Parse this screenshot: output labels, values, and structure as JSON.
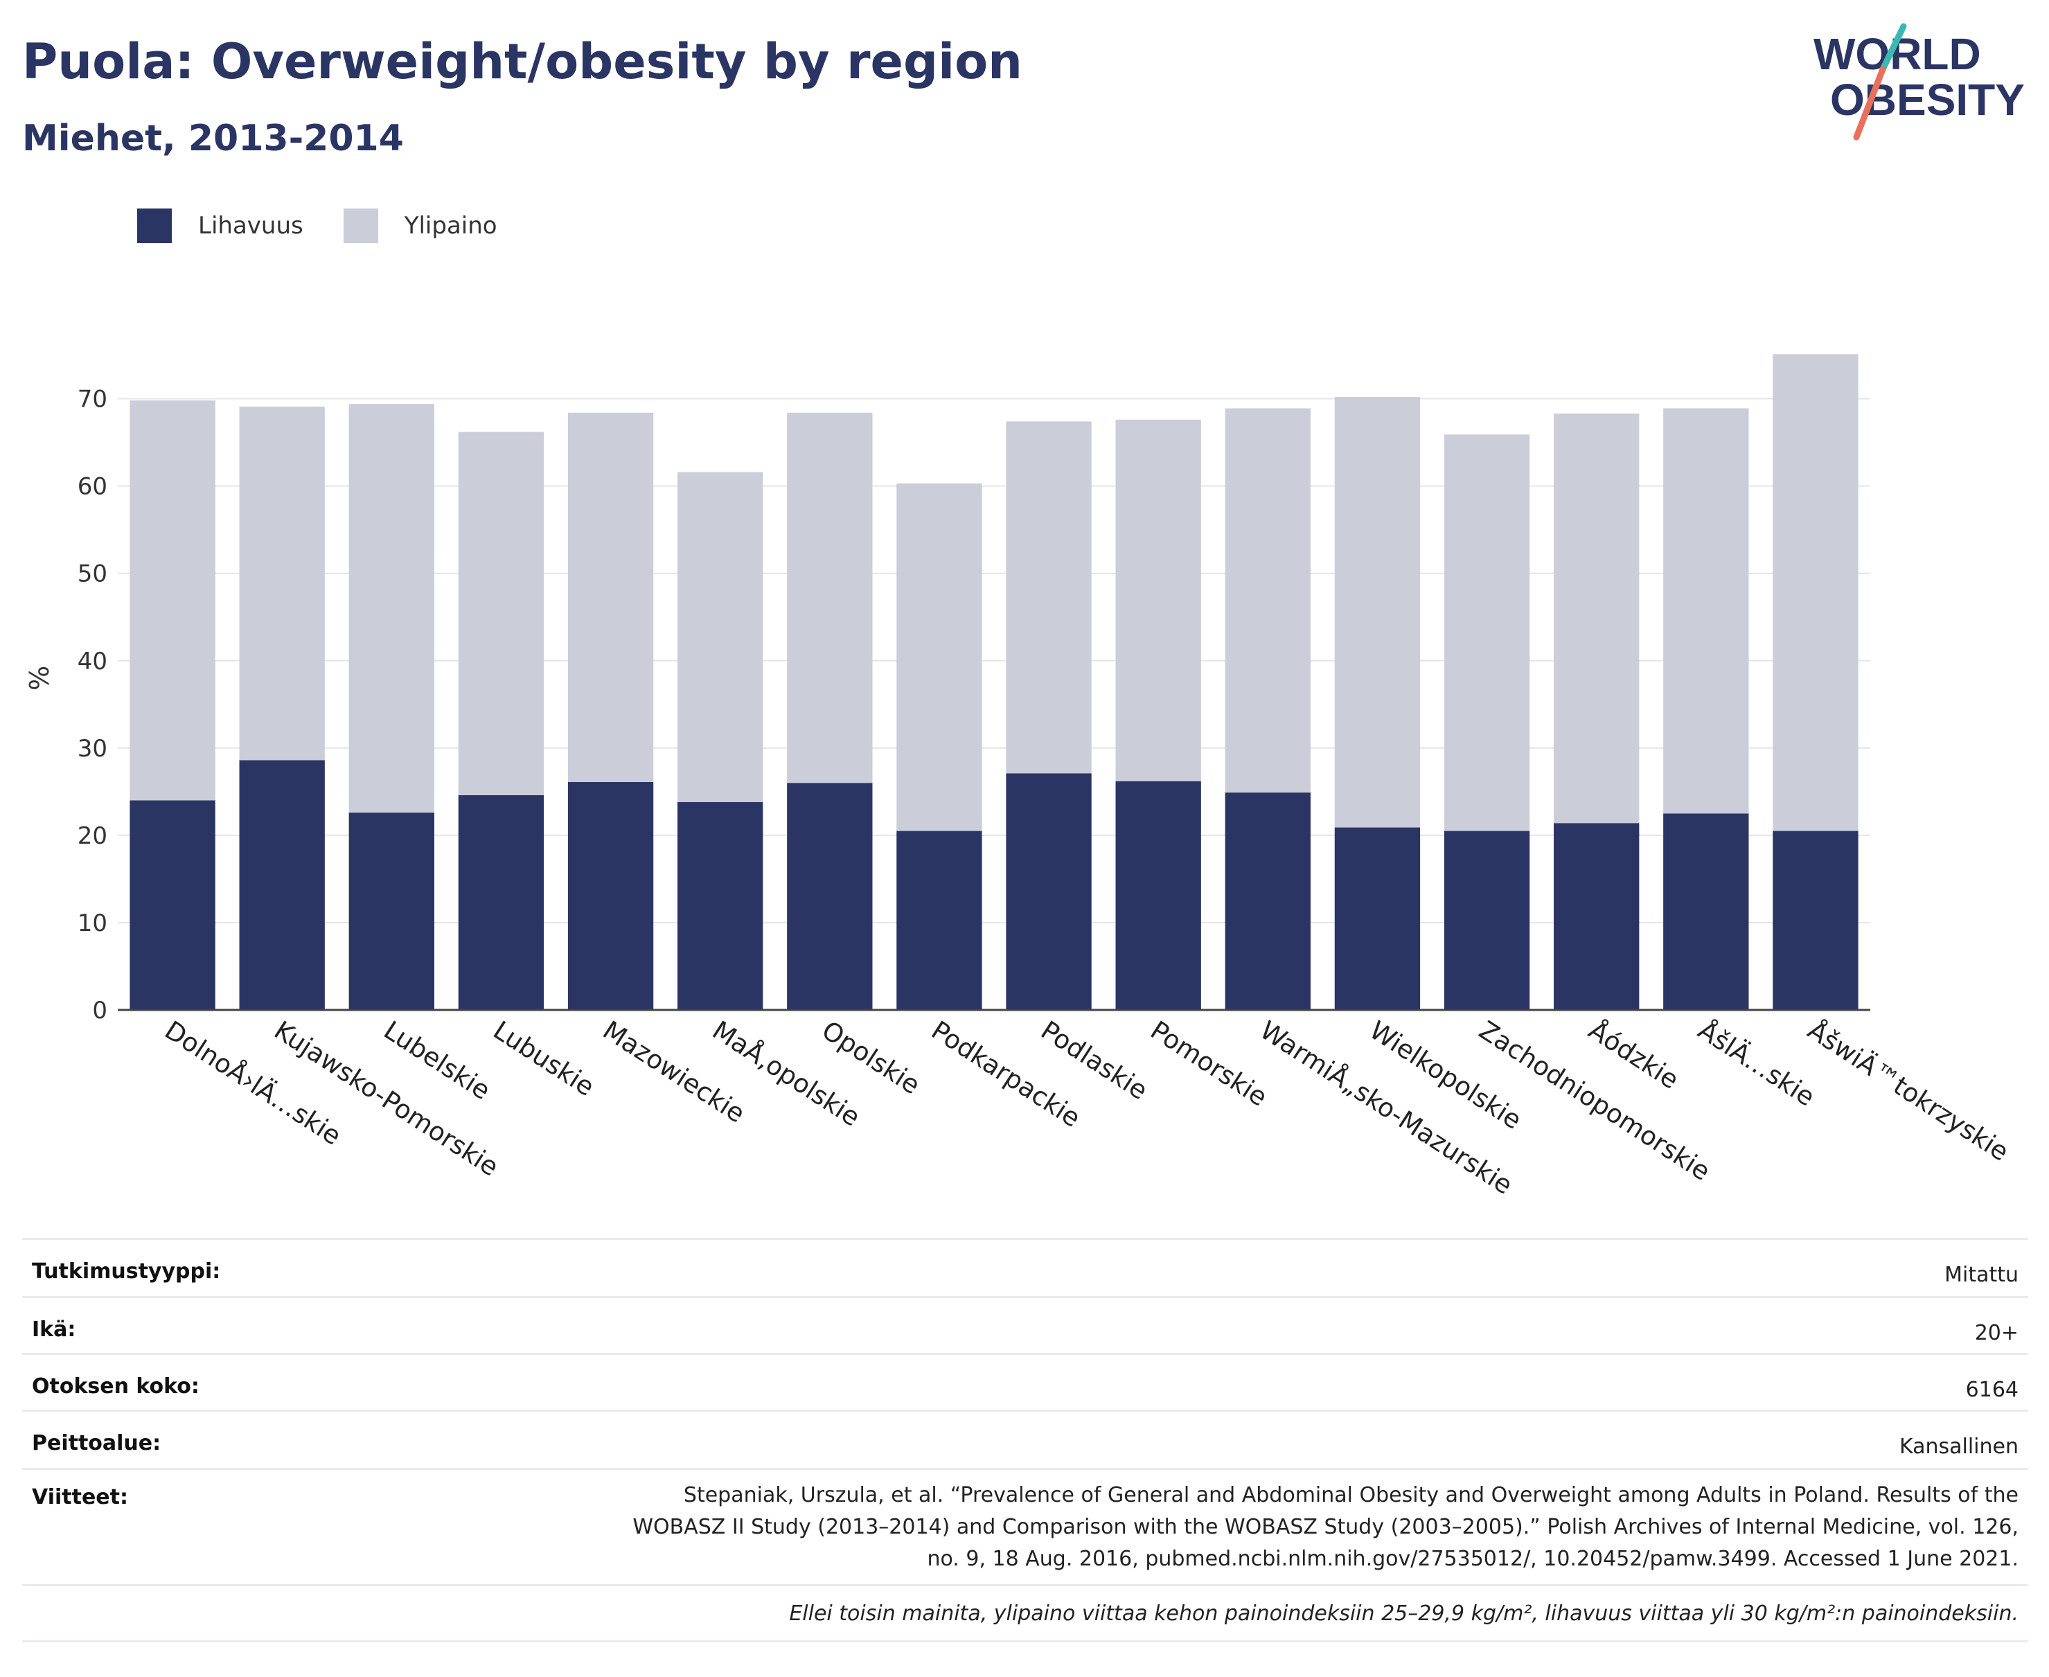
{
  "header": {
    "title": "Puola: Overweight/obesity by region",
    "subtitle": "Miehet, 2013-2014"
  },
  "logo": {
    "line1": "WORLD",
    "line2": "OBESITY"
  },
  "colors": {
    "obesity": "#2a3563",
    "overweight": "#cbcdd9",
    "title": "#2a3563",
    "grid": "#e6e6ea",
    "logo_teal": "#3bb8b4",
    "logo_coral": "#e8705c"
  },
  "chart_data": {
    "type": "bar",
    "stacked": true,
    "categories": [
      "DolnoÅ›lÄ…skie",
      "Kujawsko-Pomorskie",
      "Lubelskie",
      "Lubuskie",
      "Mazowieckie",
      "MaÅ‚opolskie",
      "Opolskie",
      "Podkarpackie",
      "Podlaskie",
      "Pomorskie",
      "WarmiÅ„sko-Mazurskie",
      "Wielkopolskie",
      "Zachodniopomorskie",
      "Å\u001aódzkie",
      "ÅšlÄ…skie",
      "ÅšwiÄ™tokrzyskie"
    ],
    "series": [
      {
        "name": "Lihavuus",
        "values": [
          24.0,
          28.6,
          22.6,
          24.6,
          26.1,
          23.8,
          26.0,
          20.5,
          27.1,
          26.2,
          24.9,
          20.9,
          20.5,
          21.4,
          22.5,
          20.5
        ]
      },
      {
        "name": "Ylipaino",
        "values": [
          45.8,
          40.5,
          46.8,
          41.6,
          42.3,
          37.8,
          42.4,
          39.8,
          40.3,
          41.4,
          44.0,
          49.3,
          45.4,
          46.9,
          46.4,
          54.6
        ]
      }
    ],
    "xlabel": "",
    "ylabel": "%",
    "ylim": [
      0,
      76
    ],
    "yticks": [
      0,
      10,
      20,
      30,
      40,
      50,
      60,
      70
    ],
    "grid": true,
    "legend_position": "top-left"
  },
  "info": {
    "rows": [
      {
        "label": "Tutkimustyyppi:",
        "value": "Mitattu"
      },
      {
        "label": "Ikä:",
        "value": "20+"
      },
      {
        "label": "Otoksen koko:",
        "value": "6164"
      },
      {
        "label": "Peittoalue:",
        "value": "Kansallinen"
      }
    ],
    "reference_label": "Viitteet:",
    "reference_lines": [
      "Stepaniak, Urszula, et al. “Prevalence of General and Abdominal Obesity and Overweight among Adults in Poland. Results of the",
      "WOBASZ II Study (2013–2014) and Comparison with the WOBASZ Study (2003–2005).” Polish Archives of Internal Medicine, vol. 126,",
      "no. 9, 18 Aug. 2016, pubmed.ncbi.nlm.nih.gov/27535012/, 10.20452/pamw.3499. Accessed 1 June 2021."
    ],
    "note": "Ellei toisin mainita, ylipaino viittaa kehon painoindeksiin 25–29,9 kg/m², lihavuus viittaa yli 30 kg/m²:n painoindeksiin."
  }
}
